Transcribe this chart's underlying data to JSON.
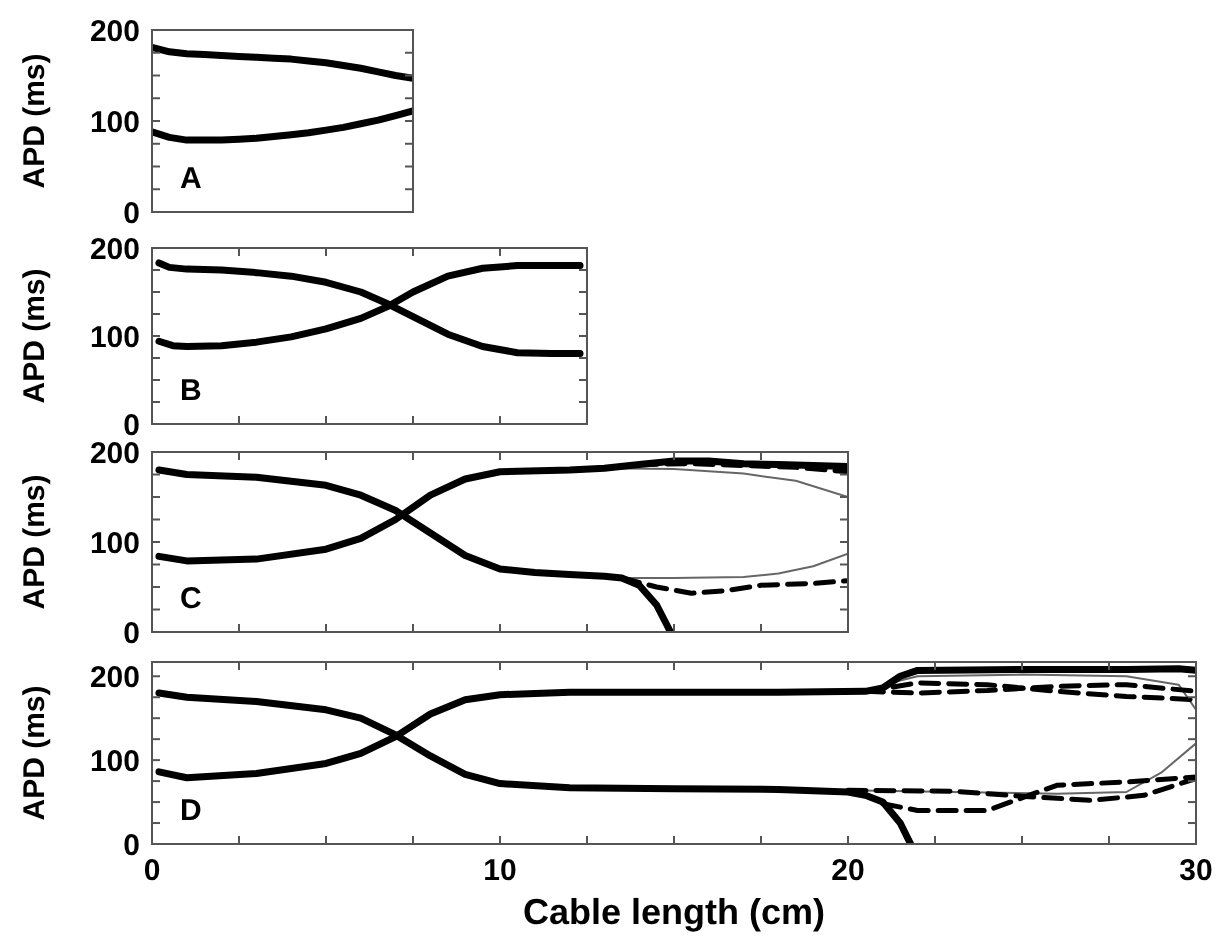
{
  "chart_data": [
    {
      "type": "line",
      "ylabel": "APD (ms)",
      "annotations": [
        "A"
      ],
      "tick_labels": "y",
      "categories": [
        null,
        null,
        null,
        null,
        null,
        null,
        null,
        null,
        null,
        null,
        null,
        null,
        null,
        null,
        null,
        null
      ],
      "ylim": [
        0,
        200
      ],
      "yticks": [
        0,
        {
          "value": 25,
          "label": null
        },
        {
          "value": 50,
          "label": null
        },
        {
          "value": 75,
          "label": null
        },
        100,
        {
          "value": 125,
          "label": null
        },
        {
          "value": 150,
          "label": null
        },
        {
          "value": 175,
          "label": null
        },
        200
      ],
      "series": [
        {
          "color": "#000000",
          "line_style": "solid",
          "values": [
            181,
            176,
            174,
            173,
            172,
            171,
            170,
            169,
            168,
            166,
            164,
            161,
            158,
            154,
            150,
            147
          ]
        },
        {
          "color": "#000000",
          "line_style": "solid",
          "values": [
            88,
            82,
            79,
            79,
            79,
            80,
            81,
            83,
            85,
            87,
            90,
            93,
            97,
            101,
            106,
            111
          ]
        }
      ]
    },
    {
      "type": "line",
      "ylabel": "APD (ms)",
      "annotations": [
        "B"
      ],
      "tick_labels": "y",
      "xlim": [
        0,
        12.5
      ],
      "xticks": [
        0,
        2.5,
        5,
        7.5,
        10,
        12.5
      ],
      "ylim": [
        0,
        200
      ],
      "yticks": [
        0,
        {
          "value": 25,
          "label": null
        },
        {
          "value": 50,
          "label": null
        },
        {
          "value": 75,
          "label": null
        },
        100,
        {
          "value": 125,
          "label": null
        },
        {
          "value": 150,
          "label": null
        },
        {
          "value": 175,
          "label": null
        },
        200
      ],
      "series": [
        {
          "color": "#000000",
          "line_style": "solid",
          "x": [
            0.2,
            0.5,
            1,
            2,
            3,
            4,
            5,
            6,
            6.8,
            7.5,
            8.5,
            9.5,
            10.5,
            11.5,
            12.3
          ],
          "values": [
            183,
            178,
            176,
            175,
            172,
            168,
            161,
            150,
            136,
            122,
            102,
            88,
            81,
            80,
            80
          ]
        },
        {
          "color": "#000000",
          "line_style": "solid",
          "x": [
            0.2,
            0.6,
            1,
            2,
            3,
            4,
            5,
            6,
            6.8,
            7.5,
            8.5,
            9.5,
            10.5,
            11.5,
            12.3
          ],
          "values": [
            94,
            89,
            88,
            89,
            93,
            99,
            108,
            120,
            134,
            150,
            168,
            177,
            180,
            180,
            180
          ]
        }
      ]
    },
    {
      "type": "line",
      "ylabel": "APD (ms)",
      "annotations": [
        "C"
      ],
      "tick_labels": "y",
      "xlim": [
        0,
        20
      ],
      "xticks": [
        0,
        2.5,
        5,
        7.5,
        10,
        12.5,
        15,
        17.5,
        20
      ],
      "ylim": [
        0,
        200
      ],
      "yticks": [
        0,
        {
          "value": 25,
          "label": null
        },
        {
          "value": 50,
          "label": null
        },
        {
          "value": 75,
          "label": null
        },
        100,
        {
          "value": 125,
          "label": null
        },
        {
          "value": 150,
          "label": null
        },
        {
          "value": 175,
          "label": null
        },
        200
      ],
      "series": [
        {
          "color": "#666666",
          "line_style": "solid",
          "x": [
            13,
            15,
            17,
            18.5,
            20
          ],
          "values": [
            182,
            181,
            176,
            168,
            150
          ]
        },
        {
          "color": "#666666",
          "line_style": "solid",
          "x": [
            13.5,
            15,
            17,
            18,
            19,
            20
          ],
          "values": [
            60,
            60,
            61,
            65,
            73,
            87
          ]
        },
        {
          "color": "#000000",
          "line_style": "dashed",
          "x": [
            14,
            15.5,
            17,
            18.5,
            20
          ],
          "values": [
            186,
            187,
            185,
            183,
            178
          ]
        },
        {
          "color": "#000000",
          "line_style": "dashed",
          "x": [
            13.5,
            14.5,
            15.5,
            16.5,
            17.5,
            19,
            20
          ],
          "values": [
            60,
            50,
            43,
            46,
            52,
            54,
            57
          ]
        },
        {
          "color": "#000000",
          "line_style": "solid",
          "x": [
            0.2,
            1,
            3,
            5,
            6,
            7,
            8,
            9,
            10,
            11,
            12,
            13,
            13.5,
            14,
            14.5,
            14.9
          ],
          "values": [
            180,
            175,
            172,
            163,
            152,
            135,
            110,
            85,
            70,
            66,
            64,
            62,
            60,
            52,
            30,
            0
          ]
        },
        {
          "color": "#000000",
          "line_style": "solid",
          "x": [
            0.2,
            1,
            3,
            5,
            6,
            7,
            8,
            9,
            10,
            12,
            13,
            14,
            15,
            16,
            17,
            18,
            19,
            20
          ],
          "values": [
            84,
            79,
            81,
            92,
            104,
            125,
            152,
            170,
            178,
            180,
            182,
            186,
            190,
            190,
            187,
            186,
            185,
            184
          ]
        }
      ]
    },
    {
      "type": "line",
      "ylabel": "APD (ms)",
      "xlabel": "Cable length (cm)",
      "annotations": [
        "D"
      ],
      "xlim": [
        0,
        30
      ],
      "xticks": [
        0,
        {
          "value": 2.5,
          "label": null
        },
        {
          "value": 5,
          "label": null
        },
        {
          "value": 7.5,
          "label": null
        },
        10,
        {
          "value": 12.5,
          "label": null
        },
        {
          "value": 15,
          "label": null
        },
        {
          "value": 17.5,
          "label": null
        },
        20,
        {
          "value": 22.5,
          "label": null
        },
        {
          "value": 25,
          "label": null
        },
        {
          "value": 27.5,
          "label": null
        },
        30
      ],
      "ylim": [
        0,
        217
      ],
      "yticks": [
        0,
        {
          "value": 25,
          "label": null
        },
        {
          "value": 50,
          "label": null
        },
        {
          "value": 75,
          "label": null
        },
        100,
        {
          "value": 125,
          "label": null
        },
        {
          "value": 150,
          "label": null
        },
        {
          "value": 175,
          "label": null
        },
        200
      ],
      "series": [
        {
          "color": "#666666",
          "line_style": "solid",
          "x": [
            20.5,
            21.5,
            22,
            25,
            28,
            29.5,
            30
          ],
          "values": [
            182,
            195,
            200,
            202,
            200,
            190,
            160
          ]
        },
        {
          "color": "#666666",
          "line_style": "solid",
          "x": [
            20,
            23,
            26,
            28,
            29,
            30
          ],
          "values": [
            64,
            62,
            60,
            62,
            85,
            120
          ]
        },
        {
          "color": "#000000",
          "line_style": "dashed",
          "x": [
            20.5,
            22,
            24,
            26,
            28,
            30
          ],
          "values": [
            182,
            192,
            190,
            182,
            176,
            172
          ]
        },
        {
          "color": "#000000",
          "line_style": "dashed",
          "x": [
            20.5,
            22,
            24,
            26,
            28,
            30
          ],
          "values": [
            182,
            180,
            183,
            188,
            190,
            182
          ]
        },
        {
          "color": "#000000",
          "line_style": "dashed",
          "x": [
            20,
            23,
            25,
            27,
            28.5,
            30
          ],
          "values": [
            64,
            63,
            57,
            52,
            58,
            78
          ]
        },
        {
          "color": "#000000",
          "line_style": "dashed",
          "x": [
            21,
            22,
            24,
            25,
            26,
            28,
            30
          ],
          "values": [
            48,
            40,
            40,
            55,
            70,
            74,
            80
          ]
        },
        {
          "color": "#000000",
          "line_style": "solid",
          "x": [
            0.2,
            1,
            3,
            5,
            6,
            7,
            8,
            9,
            10,
            12,
            15,
            18,
            20,
            20.5,
            21,
            21.5,
            21.8
          ],
          "values": [
            180,
            175,
            170,
            160,
            150,
            130,
            105,
            83,
            72,
            67,
            66,
            65,
            62,
            58,
            50,
            25,
            0
          ]
        },
        {
          "color": "#000000",
          "line_style": "solid",
          "x": [
            0.2,
            1,
            3,
            5,
            6,
            7,
            8,
            9,
            10,
            12,
            15,
            18,
            20.5,
            21,
            21.5,
            22,
            25,
            28,
            29.5,
            30
          ],
          "values": [
            86,
            79,
            84,
            96,
            108,
            128,
            155,
            172,
            178,
            181,
            181,
            181,
            182,
            186,
            200,
            207,
            208,
            208,
            209,
            207
          ]
        }
      ]
    }
  ]
}
